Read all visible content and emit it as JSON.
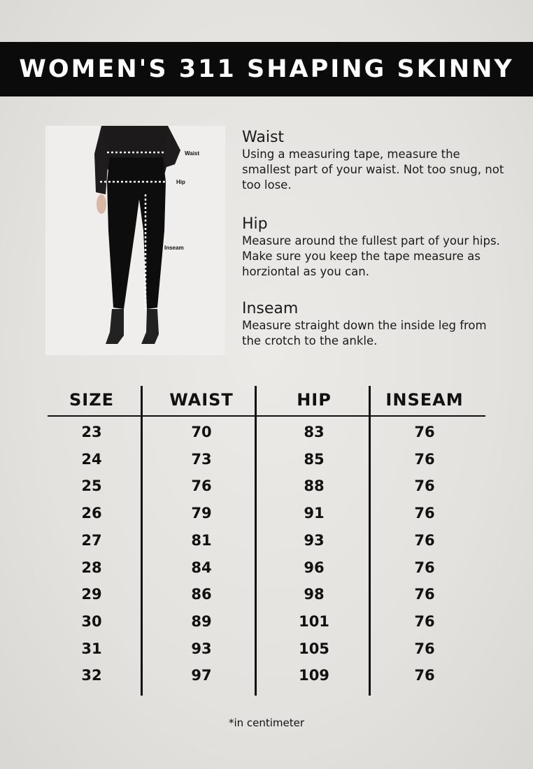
{
  "title": "WOMEN'S 311 SHAPING SKINNY",
  "photo_labels": {
    "waist": "Waist",
    "hip": "Hip",
    "inseam": "Inseam"
  },
  "instructions": [
    {
      "heading": "Waist",
      "text": "Using a measuring tape, measure the smallest part of your waist. Not too snug, not too lose."
    },
    {
      "heading": "Hip",
      "text": "Measure around the fullest part of your hips. Make sure you keep the tape measure as horziontal as you can."
    },
    {
      "heading": "Inseam",
      "text": "Measure straight down the inside leg from the crotch to the ankle."
    }
  ],
  "table": {
    "headers": [
      "SIZE",
      "WAIST",
      "HIP",
      "INSEAM"
    ],
    "rows": [
      [
        "23",
        "70",
        "83",
        "76"
      ],
      [
        "24",
        "73",
        "85",
        "76"
      ],
      [
        "25",
        "76",
        "88",
        "76"
      ],
      [
        "26",
        "79",
        "91",
        "76"
      ],
      [
        "27",
        "81",
        "93",
        "76"
      ],
      [
        "28",
        "84",
        "96",
        "76"
      ],
      [
        "29",
        "86",
        "98",
        "76"
      ],
      [
        "30",
        "89",
        "101",
        "76"
      ],
      [
        "31",
        "93",
        "105",
        "76"
      ],
      [
        "32",
        "97",
        "109",
        "76"
      ]
    ]
  },
  "footnote": "*in centimeter"
}
